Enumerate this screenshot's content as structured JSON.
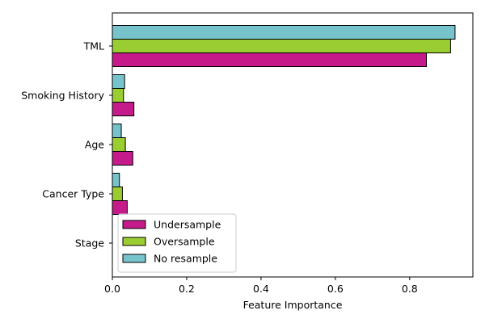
{
  "chart_data": {
    "type": "bar",
    "orientation": "horizontal",
    "title": "",
    "xlabel": "Feature Importance",
    "ylabel": "",
    "xlim": [
      0.0,
      0.97
    ],
    "xticks": [
      "0.0",
      "0.2",
      "0.4",
      "0.6",
      "0.8"
    ],
    "xtick_values": [
      0.0,
      0.2,
      0.4,
      0.6,
      0.8
    ],
    "categories": [
      "TML",
      "Smoking History",
      "Age",
      "Cancer Type",
      "Stage"
    ],
    "series": [
      {
        "name": "Undersample",
        "color": "#c51b8a",
        "values": [
          0.845,
          0.058,
          0.055,
          0.04,
          0.0
        ]
      },
      {
        "name": "Oversample",
        "color": "#9acd32",
        "values": [
          0.91,
          0.03,
          0.035,
          0.027,
          0.0
        ]
      },
      {
        "name": "No resample",
        "color": "#76c3cc",
        "values": [
          0.922,
          0.033,
          0.024,
          0.019,
          0.0
        ]
      }
    ],
    "grid": false,
    "legend_position": "lower-left"
  }
}
